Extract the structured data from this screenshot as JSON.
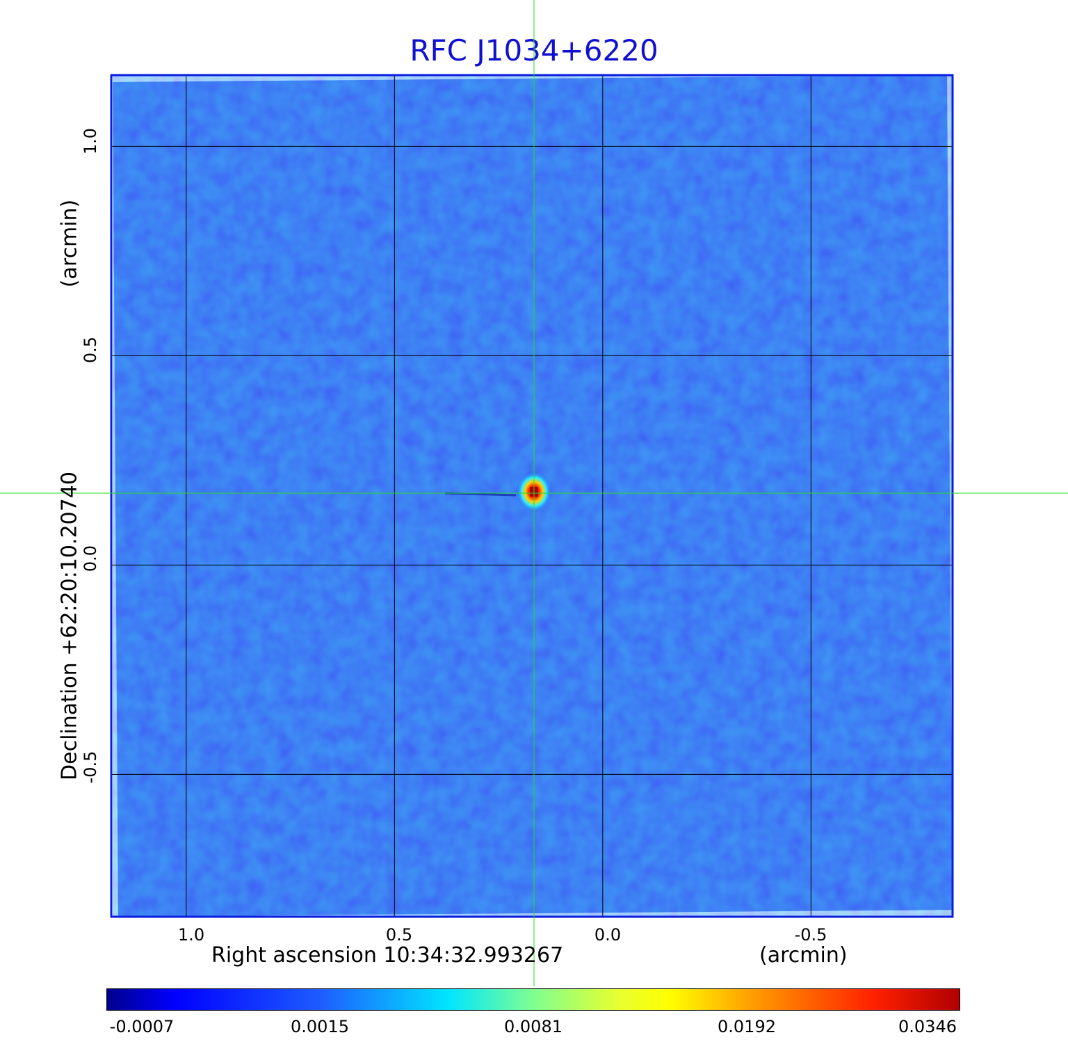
{
  "title": "RFC J1034+6220",
  "x_axis": {
    "label": "Right ascension  10:34:32.993267",
    "unit": "(arcmin)",
    "ticks": [
      "1.0",
      "0.5",
      "0.0",
      "-0.5"
    ],
    "tick_values": [
      1.0,
      0.5,
      0.0,
      -0.5
    ],
    "range": [
      1.18,
      -0.84
    ]
  },
  "y_axis": {
    "label": "Declination  +62:20:10.20740",
    "unit": "(arcmin)",
    "ticks": [
      "1.0",
      "0.5",
      "0.0",
      "-0.5"
    ],
    "tick_values": [
      1.0,
      0.5,
      0.0,
      -0.5
    ],
    "range": [
      -0.84,
      1.17
    ]
  },
  "colorbar": {
    "ticks": [
      "-0.0007",
      "0.0015",
      "0.0081",
      "0.0192",
      "0.0346"
    ]
  },
  "source": {
    "x_arcmin": 0.165,
    "y_arcmin": 0.175
  },
  "colors": {
    "title": "#1010d0",
    "frame": "#0a1ee0",
    "crosshair": "#22dd22",
    "grid": "#000000",
    "background_map": "#1e50f0"
  }
}
